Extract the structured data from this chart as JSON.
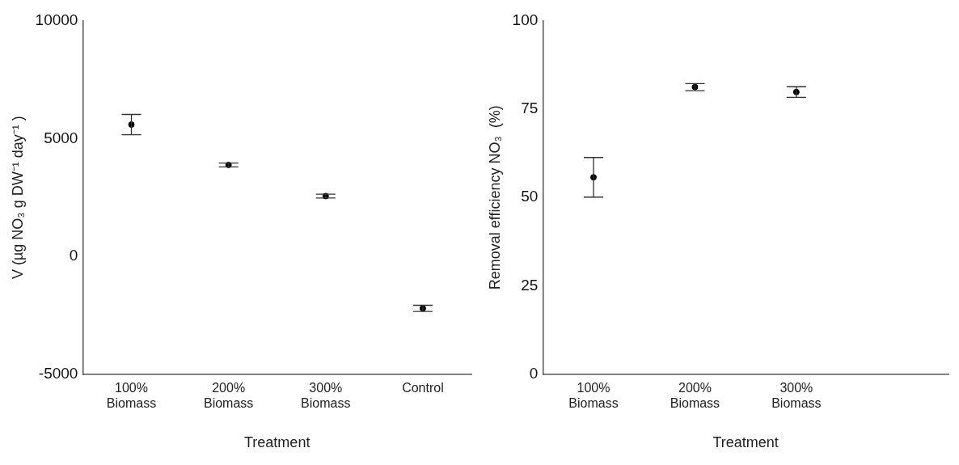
{
  "chart_data": [
    {
      "type": "scatter",
      "xlabel": "Treatment",
      "ylabel": "V (µg NO₃ g DW⁻¹ day⁻¹ )",
      "categories": [
        "100% Biomass",
        "200% Biomass",
        "300% Biomass",
        "Control"
      ],
      "values": [
        5590,
        3880,
        2560,
        -2200
      ],
      "errors": [
        430,
        80,
        80,
        130
      ],
      "color": "#000000",
      "marker": "circle",
      "ylim": [
        -5000,
        10000
      ],
      "yticks": [
        -5000,
        0,
        5000,
        10000
      ]
    },
    {
      "type": "scatter",
      "xlabel": "Treatment",
      "ylabel": "Removal efficiency NO₃  (%)",
      "categories": [
        "100% Biomass",
        "200% Biomass",
        "300% Biomass",
        null
      ],
      "values": [
        55.7,
        81.2,
        79.8,
        null
      ],
      "errors": [
        5.6,
        1,
        1.5,
        null
      ],
      "color": "#000000",
      "marker": "circle",
      "ylim": [
        0,
        100
      ],
      "yticks": [
        0,
        25,
        50,
        75,
        100
      ]
    }
  ]
}
